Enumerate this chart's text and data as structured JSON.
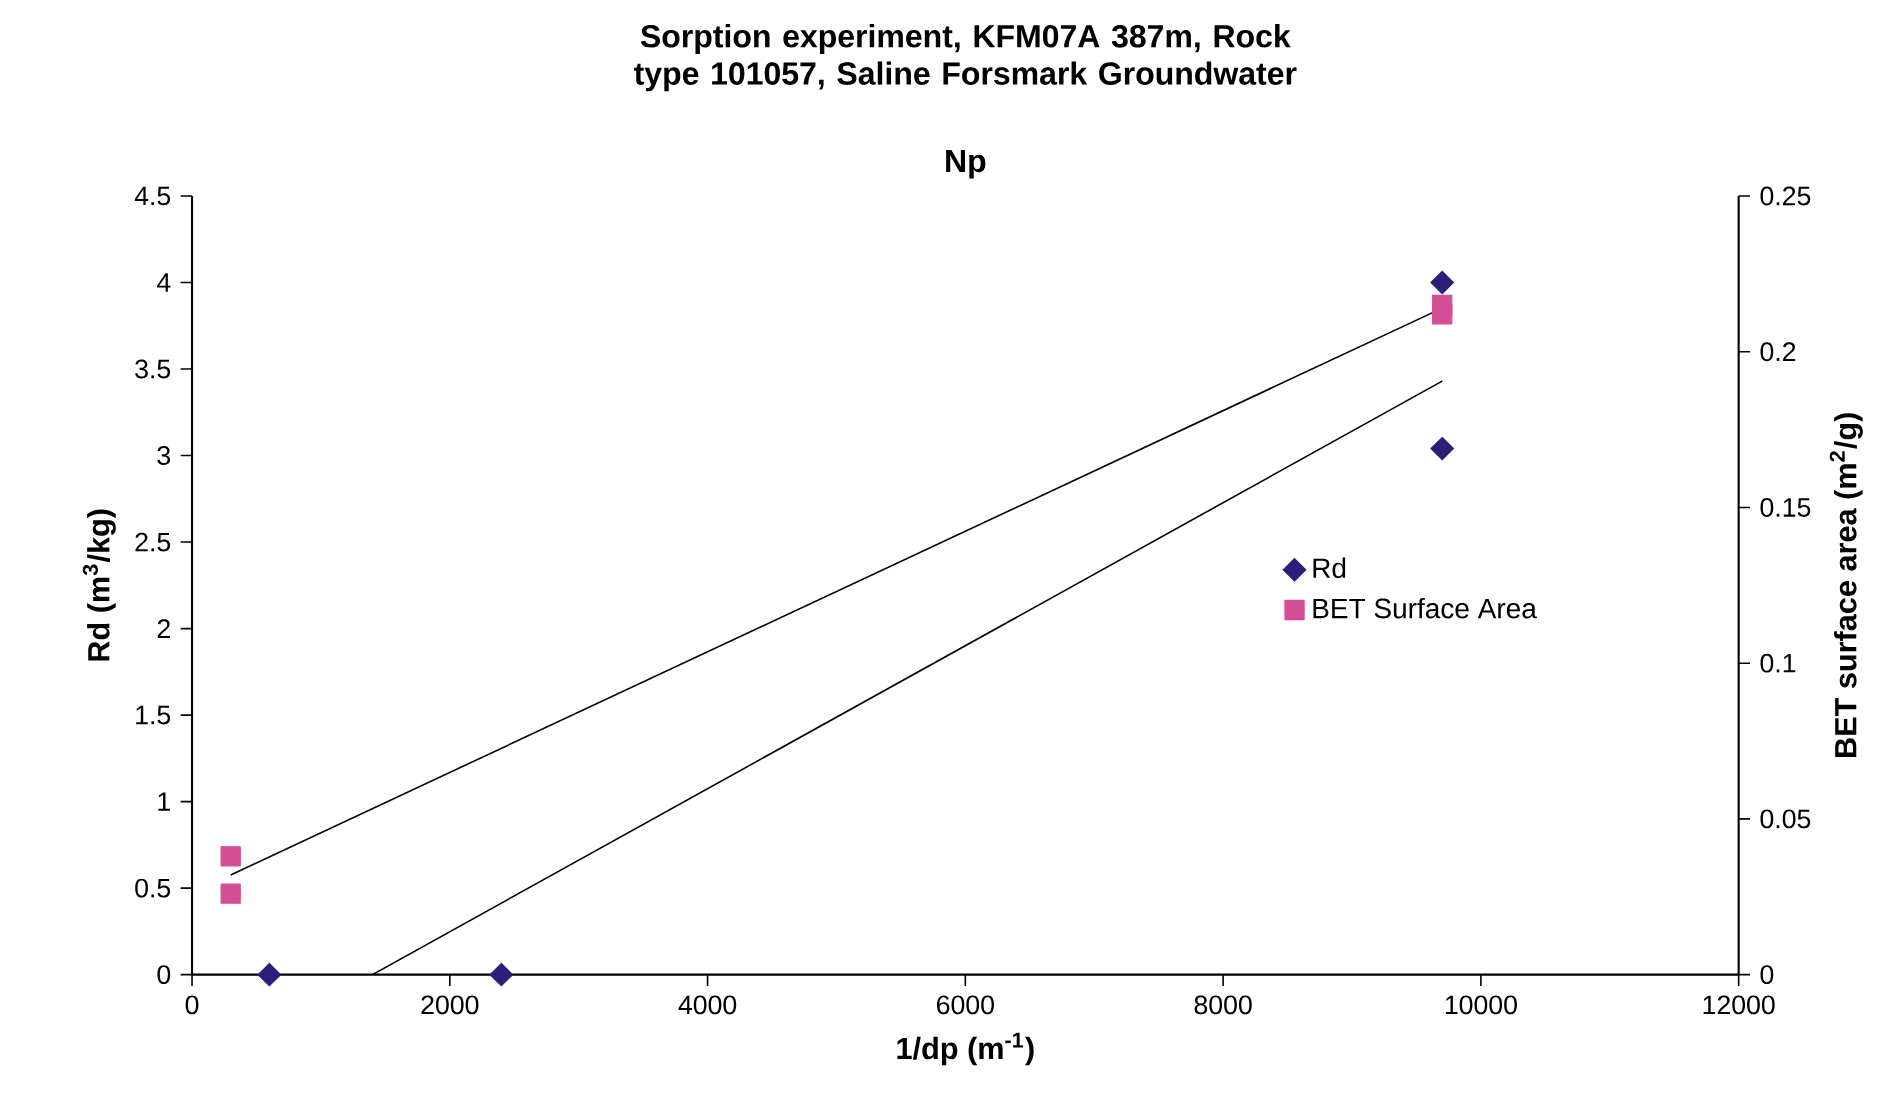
{
  "chart_data": {
    "type": "scatter",
    "title": "Sorption experiment, KFM07A 387m, Rock type 101057, Saline Forsmark Groundwater",
    "subtitle": "Np",
    "xlabel": "1/dp (m$^{-1}$)",
    "ylabel": "Rd (m$^{3}$/kg)",
    "y2label": "BET surface area (m$^{2}$/g)",
    "xlim": [
      0,
      12000
    ],
    "xticks": [
      0,
      2000,
      4000,
      6000,
      8000,
      10000,
      12000
    ],
    "ylim": [
      0,
      4.5
    ],
    "yticks": [
      0,
      0.5,
      1,
      1.5,
      2,
      2.5,
      3,
      3.5,
      4,
      4.5
    ],
    "y2lim": [
      0,
      0.25
    ],
    "y2ticks": [
      0,
      0.05,
      0.1,
      0.15,
      0.2,
      0.25
    ],
    "grid": false,
    "legend": "right",
    "series": [
      {
        "name": "Rd",
        "marker": "diamond",
        "color": "#2b1f7a",
        "x": [
          600,
          2400,
          9700,
          9700
        ],
        "values": [
          0,
          0,
          4.0,
          3.04
        ]
      },
      {
        "name": "BET Surface Area",
        "marker": "square",
        "axis": "y2",
        "color": "#d44d97",
        "x": [
          300,
          300,
          9700,
          9700
        ],
        "values": [
          0.038,
          0.026,
          0.215,
          0.212
        ]
      },
      {
        "type": "line",
        "marker": "none",
        "line_style": "solid",
        "color": "#000000",
        "x": [
          1400,
          9700
        ],
        "values": [
          0,
          3.43
        ]
      },
      {
        "type": "line",
        "marker": "none",
        "line_style": "solid",
        "axis": "y2",
        "color": "#000000",
        "x": [
          300,
          9700
        ],
        "values": [
          0.032,
          0.214
        ]
      }
    ]
  }
}
